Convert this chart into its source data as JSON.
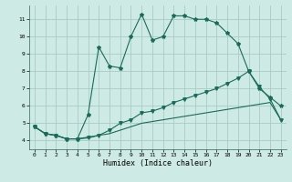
{
  "xlabel": "Humidex (Indice chaleur)",
  "x_values": [
    0,
    1,
    2,
    3,
    4,
    5,
    6,
    7,
    8,
    9,
    10,
    11,
    12,
    13,
    14,
    15,
    16,
    17,
    18,
    19,
    20,
    21,
    22,
    23
  ],
  "line1": [
    4.8,
    4.4,
    4.3,
    4.1,
    4.1,
    5.5,
    9.4,
    8.3,
    8.2,
    10.0,
    11.3,
    9.8,
    10.0,
    11.2,
    11.2,
    11.0,
    11.0,
    10.8,
    10.2,
    9.6,
    8.0,
    7.0,
    6.5,
    6.0
  ],
  "line2": [
    4.8,
    4.4,
    4.3,
    4.1,
    4.1,
    4.2,
    4.3,
    4.6,
    5.0,
    5.2,
    5.6,
    5.7,
    5.9,
    6.2,
    6.4,
    6.6,
    6.8,
    7.0,
    7.3,
    7.6,
    8.0,
    7.1,
    6.4,
    5.2
  ],
  "line3": [
    4.8,
    4.4,
    4.3,
    4.1,
    4.1,
    4.15,
    4.3,
    4.4,
    4.6,
    4.8,
    5.0,
    5.1,
    5.2,
    5.3,
    5.4,
    5.5,
    5.6,
    5.7,
    5.8,
    5.9,
    6.0,
    6.1,
    6.2,
    5.2
  ],
  "line_color": "#1a6b5a",
  "bg_color": "#ceeae4",
  "grid_color": "#aaccC4",
  "ylim": [
    3.5,
    11.8
  ],
  "xlim": [
    -0.5,
    23.5
  ],
  "yticks": [
    4,
    5,
    6,
    7,
    8,
    9,
    10,
    11
  ],
  "xticks": [
    0,
    1,
    2,
    3,
    4,
    5,
    6,
    7,
    8,
    9,
    10,
    11,
    12,
    13,
    14,
    15,
    16,
    17,
    18,
    19,
    20,
    21,
    22,
    23
  ]
}
